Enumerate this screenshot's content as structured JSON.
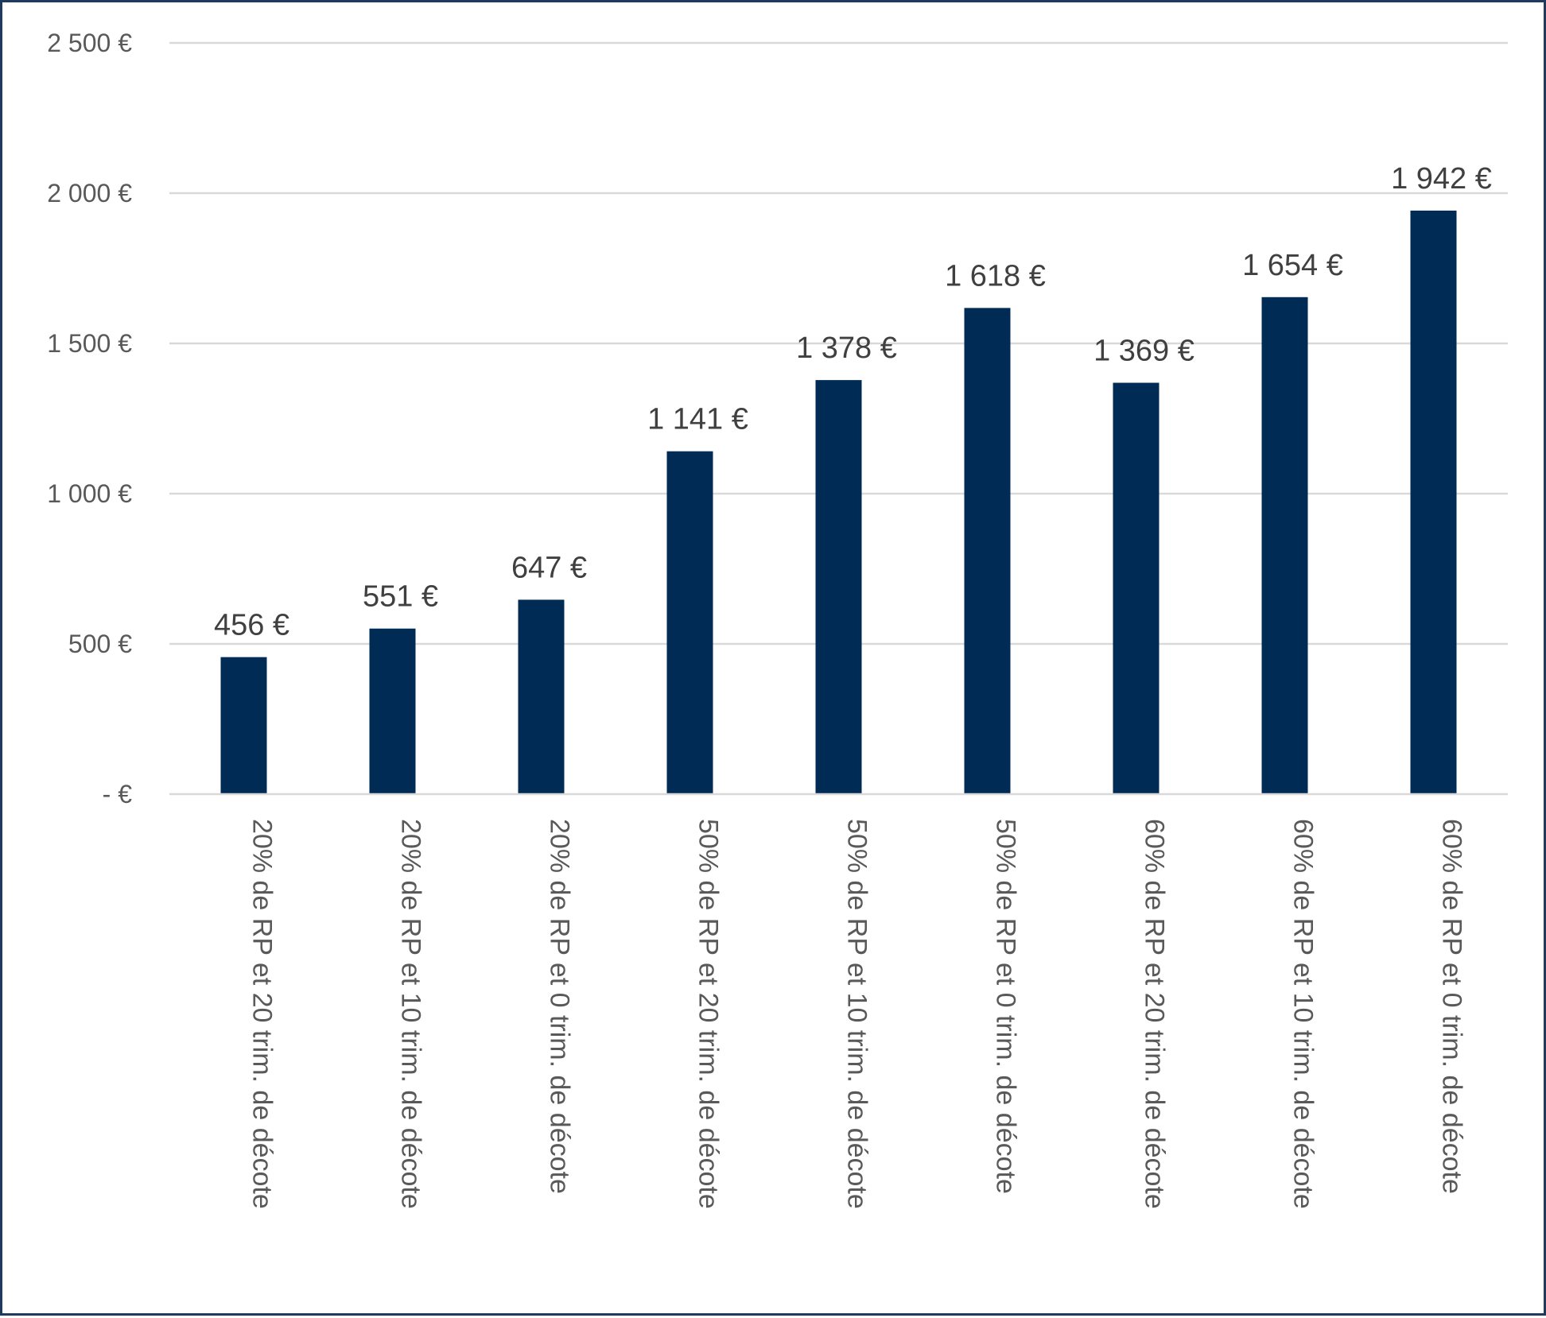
{
  "chart_data": {
    "type": "bar",
    "title": "",
    "xlabel": "",
    "ylabel": "",
    "categories": [
      "20% de RP et 20 trim. de décote",
      "20% de RP et 10 trim. de décote",
      "20% de RP et 0 trim. de décote",
      "50% de RP et 20 trim. de décote",
      "50% de RP et 10 trim. de décote",
      "50% de RP et 0 trim. de décote",
      "60% de RP et 20 trim. de décote",
      "60% de RP et 10 trim. de décote",
      "60% de RP et 0 trim. de décote"
    ],
    "values": [
      456,
      551,
      647,
      1141,
      1378,
      1618,
      1369,
      1654,
      1942
    ],
    "data_labels": [
      "456 €",
      "551 €",
      "647 €",
      "1 141 €",
      "1 378 €",
      "1 618 €",
      "1 369 €",
      "1 654 €",
      "1 942 €"
    ],
    "ylim": [
      0,
      2500
    ],
    "y_ticks": [
      0,
      500,
      1000,
      1500,
      2000,
      2500
    ],
    "y_tick_labels": [
      "-   €",
      "500 €",
      "1 000 €",
      "1 500 €",
      "2 000 €",
      "2 500 €"
    ],
    "grid": true,
    "legend": "none",
    "bar_color": "#002b55"
  }
}
